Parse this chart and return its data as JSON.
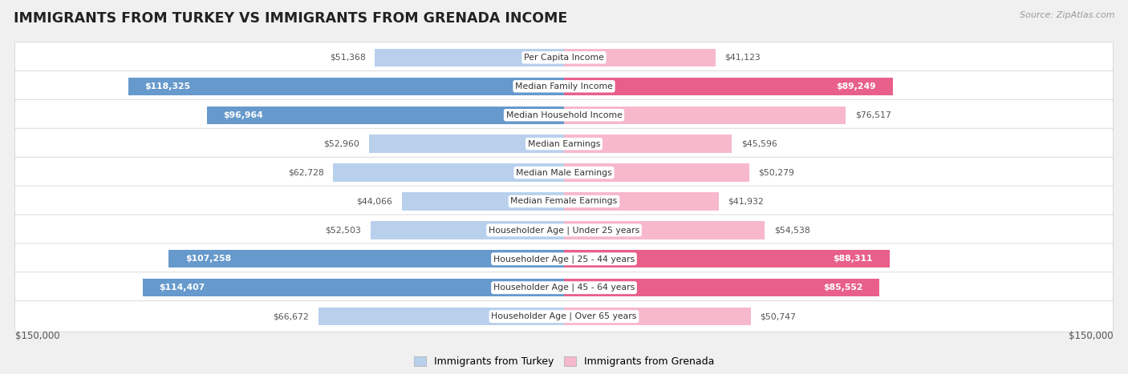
{
  "title": "IMMIGRANTS FROM TURKEY VS IMMIGRANTS FROM GRENADA INCOME",
  "source": "Source: ZipAtlas.com",
  "categories": [
    "Per Capita Income",
    "Median Family Income",
    "Median Household Income",
    "Median Earnings",
    "Median Male Earnings",
    "Median Female Earnings",
    "Householder Age | Under 25 years",
    "Householder Age | 25 - 44 years",
    "Householder Age | 45 - 64 years",
    "Householder Age | Over 65 years"
  ],
  "turkey_values": [
    51368,
    118325,
    96964,
    52960,
    62728,
    44066,
    52503,
    107258,
    114407,
    66672
  ],
  "grenada_values": [
    41123,
    89249,
    76517,
    45596,
    50279,
    41932,
    54538,
    88311,
    85552,
    50747
  ],
  "turkey_labels": [
    "$51,368",
    "$118,325",
    "$96,964",
    "$52,960",
    "$62,728",
    "$44,066",
    "$52,503",
    "$107,258",
    "$114,407",
    "$66,672"
  ],
  "grenada_labels": [
    "$41,123",
    "$89,249",
    "$76,517",
    "$45,596",
    "$50,279",
    "$41,932",
    "$54,538",
    "$88,311",
    "$85,552",
    "$50,747"
  ],
  "max_value": 150000,
  "turkey_color_light": "#b8d0ec",
  "turkey_color_dark": "#6699cc",
  "grenada_color_light": "#f7b8cc",
  "grenada_color_dark": "#e8608a",
  "dark_threshold": 80000,
  "background_color": "#f0f0f0",
  "row_bg_color": "#e8e8e8",
  "label_inside_color": "#ffffff",
  "label_outside_color": "#555555",
  "legend_turkey": "Immigrants from Turkey",
  "legend_grenada": "Immigrants from Grenada",
  "xlabel_left": "$150,000",
  "xlabel_right": "$150,000"
}
